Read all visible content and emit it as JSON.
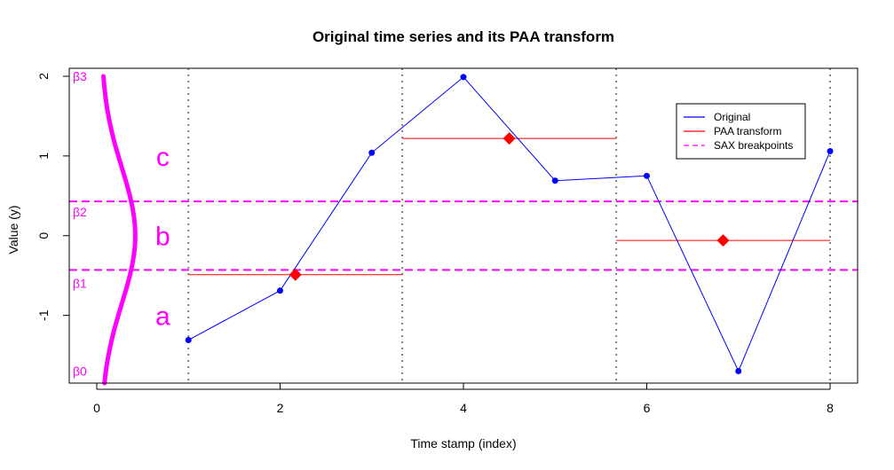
{
  "chart_data": {
    "type": "line",
    "title": "Original time series and its PAA transform",
    "xlabel": "Time stamp (index)",
    "ylabel": "Value (y)",
    "xlim": [
      -0.3,
      8.3
    ],
    "ylim": [
      -1.85,
      2.1
    ],
    "x_ticks": [
      0,
      2,
      4,
      6,
      8
    ],
    "y_ticks": [
      -1,
      0,
      1,
      2
    ],
    "series": [
      {
        "name": "Original",
        "color": "#0000ff",
        "x": [
          1,
          2,
          3,
          4,
          5,
          6,
          7,
          8
        ],
        "y": [
          -1.31,
          -0.69,
          1.04,
          1.99,
          0.69,
          0.75,
          -1.7,
          1.06
        ]
      }
    ],
    "paa": {
      "name": "PAA transform",
      "color": "#ff0000",
      "segments": [
        {
          "x_start": 1.0,
          "x_end": 3.333,
          "value": -0.49,
          "marker_x": 2.167
        },
        {
          "x_start": 3.333,
          "x_end": 5.667,
          "value": 1.22,
          "marker_x": 4.5
        },
        {
          "x_start": 5.667,
          "x_end": 8.0,
          "value": -0.06,
          "marker_x": 6.833
        }
      ]
    },
    "segment_boundaries": [
      1.0,
      3.333,
      5.667,
      8.0
    ],
    "sax_breakpoints": {
      "name": "SAX breakpoints",
      "color": "#ff00ff",
      "values": [
        -0.43,
        0.43
      ],
      "beta_labels": [
        {
          "text": "β3",
          "y": 2.0
        },
        {
          "text": "β2",
          "y": 0.3
        },
        {
          "text": "β1",
          "y": -0.6
        },
        {
          "text": "β0",
          "y": -1.7
        }
      ],
      "symbol_labels": [
        {
          "text": "c",
          "y": 1.0
        },
        {
          "text": "b",
          "y": 0.0
        },
        {
          "text": "a",
          "y": -1.0
        }
      ]
    },
    "legend": {
      "position": "top-right",
      "entries": [
        "Original",
        "PAA transform",
        "SAX breakpoints"
      ]
    },
    "grid": false
  }
}
